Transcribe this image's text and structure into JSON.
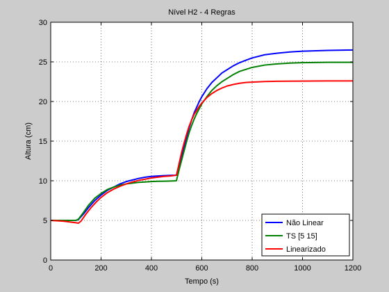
{
  "chart_data": {
    "type": "line",
    "title": "Nível H2 - 4 Regras",
    "xlabel": "Tempo (s)",
    "ylabel": "Altura (cm)",
    "xlim": [
      0,
      1200
    ],
    "ylim": [
      0,
      30
    ],
    "xticks": [
      0,
      200,
      400,
      600,
      800,
      1000,
      1200
    ],
    "yticks": [
      0,
      5,
      10,
      15,
      20,
      25,
      30
    ],
    "grid": true,
    "legend_position": "bottom-right",
    "series": [
      {
        "name": "Não Linear",
        "color": "#0000ff",
        "x": [
          0,
          100,
          110,
          130,
          150,
          175,
          200,
          225,
          250,
          275,
          300,
          325,
          350,
          375,
          400,
          425,
          450,
          475,
          499,
          500,
          510,
          520,
          530,
          540,
          550,
          560,
          570,
          580,
          590,
          600,
          620,
          640,
          660,
          680,
          700,
          725,
          750,
          775,
          800,
          850,
          900,
          950,
          1000,
          1100,
          1200
        ],
        "y": [
          5,
          5,
          5.1,
          5.8,
          6.6,
          7.5,
          8.2,
          8.8,
          9.2,
          9.6,
          9.9,
          10.1,
          10.3,
          10.45,
          10.55,
          10.6,
          10.65,
          10.68,
          10.7,
          10.8,
          12.0,
          13.2,
          14.4,
          15.6,
          16.7,
          17.7,
          18.6,
          19.3,
          20.0,
          20.6,
          21.6,
          22.4,
          23.0,
          23.6,
          24.0,
          24.5,
          24.9,
          25.2,
          25.5,
          25.9,
          26.1,
          26.25,
          26.35,
          26.45,
          26.5
        ]
      },
      {
        "name": "TS [5 15]",
        "color": "#008000",
        "x": [
          0,
          100,
          110,
          130,
          150,
          175,
          200,
          225,
          250,
          275,
          300,
          325,
          350,
          375,
          400,
          425,
          450,
          475,
          499,
          500,
          510,
          520,
          530,
          540,
          550,
          560,
          570,
          580,
          590,
          600,
          620,
          640,
          660,
          680,
          700,
          725,
          750,
          775,
          800,
          850,
          900,
          950,
          1000,
          1100,
          1200
        ],
        "y": [
          5,
          5,
          5.15,
          6.0,
          6.9,
          7.8,
          8.4,
          8.9,
          9.2,
          9.45,
          9.6,
          9.7,
          9.8,
          9.85,
          9.9,
          9.93,
          9.95,
          9.97,
          10.0,
          10.1,
          11.4,
          12.6,
          13.8,
          15.0,
          16.1,
          17.0,
          17.8,
          18.5,
          19.1,
          19.7,
          20.6,
          21.4,
          22.0,
          22.5,
          22.9,
          23.4,
          23.8,
          24.05,
          24.3,
          24.6,
          24.75,
          24.85,
          24.9,
          24.95,
          24.95
        ]
      },
      {
        "name": "Linearizado",
        "color": "#ff0000",
        "x": [
          0,
          50,
          100,
          110,
          120,
          140,
          160,
          180,
          200,
          225,
          250,
          275,
          300,
          325,
          350,
          375,
          400,
          425,
          450,
          475,
          499,
          500,
          510,
          520,
          530,
          540,
          550,
          560,
          570,
          580,
          590,
          600,
          620,
          640,
          660,
          680,
          700,
          725,
          750,
          775,
          800,
          850,
          900,
          1000,
          1100,
          1200
        ],
        "y": [
          5,
          4.9,
          4.7,
          4.65,
          4.9,
          5.8,
          6.6,
          7.3,
          7.9,
          8.5,
          8.95,
          9.3,
          9.6,
          9.85,
          10.05,
          10.2,
          10.35,
          10.45,
          10.55,
          10.6,
          10.7,
          10.75,
          12.2,
          13.6,
          14.8,
          15.9,
          16.9,
          17.7,
          18.4,
          18.9,
          19.4,
          19.8,
          20.5,
          21.0,
          21.4,
          21.7,
          21.95,
          22.15,
          22.3,
          22.4,
          22.45,
          22.52,
          22.56,
          22.58,
          22.6,
          22.6
        ]
      }
    ]
  }
}
